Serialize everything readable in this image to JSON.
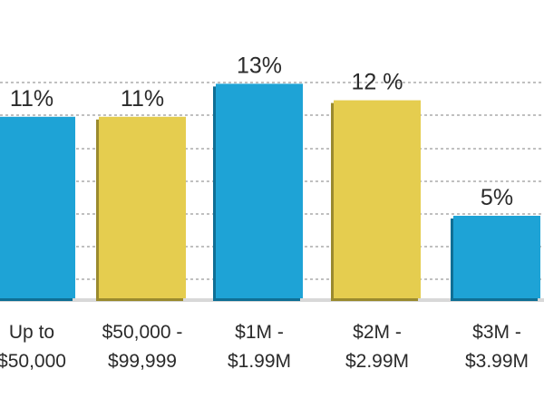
{
  "chart_data": {
    "type": "bar",
    "title": "",
    "xlabel": "",
    "ylabel": "",
    "ylim": [
      0,
      15
    ],
    "grid": true,
    "categories": [
      [
        "Up to",
        "$50,000"
      ],
      [
        "$50,000 -",
        "$99,999"
      ],
      [
        "$1M -",
        "$1.99M"
      ],
      [
        "$2M -",
        "$2.99M"
      ],
      [
        "$3M -",
        "$3.99M"
      ]
    ],
    "values": [
      11,
      11,
      13,
      12,
      5
    ],
    "data_labels": [
      "11%",
      "11%",
      "13%",
      "12 %",
      "5%"
    ],
    "colors": [
      "#1ea3d6",
      "#e5cd4f",
      "#1ea3d6",
      "#e5cd4f",
      "#1ea3d6"
    ],
    "edge_colors": [
      "#0f6f95",
      "#9a8a2e",
      "#0f6f95",
      "#9a8a2e",
      "#0f6f95"
    ]
  }
}
